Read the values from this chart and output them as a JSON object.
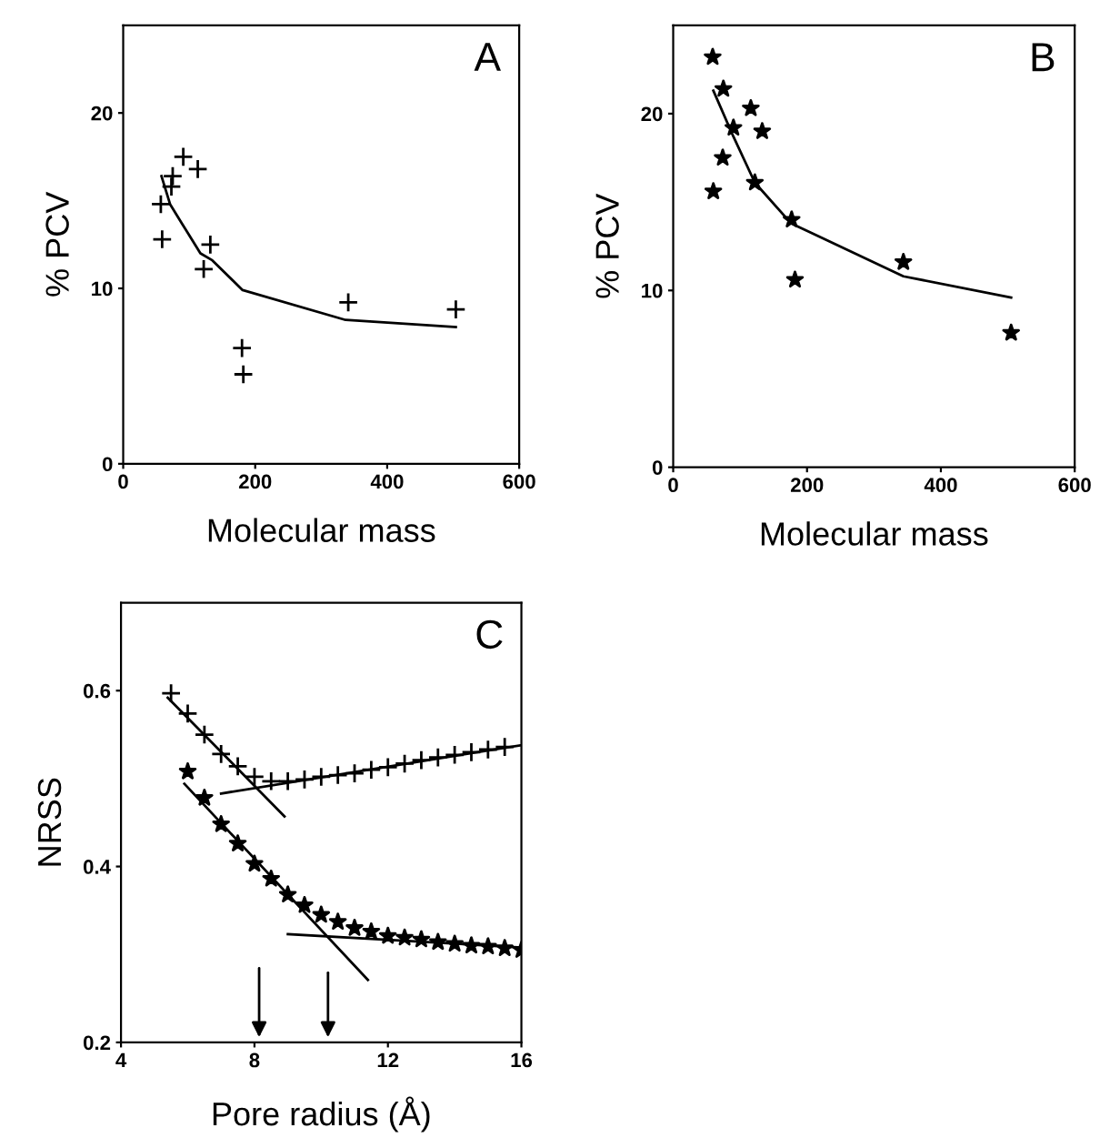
{
  "chart_data": [
    {
      "type": "scatter",
      "xlabel": "Molecular mass",
      "ylabel": "% PCV",
      "annotations": [
        "A"
      ],
      "xlim": [
        0,
        600
      ],
      "ylim": [
        0,
        25
      ],
      "xticks": [
        0,
        200,
        400,
        600
      ],
      "yticks": [
        0,
        10,
        20
      ],
      "grid": false,
      "legend": false,
      "series": [
        {
          "marker": "cross",
          "color": "#000000",
          "x": [
            57,
            59,
            75,
            73,
            91,
            113,
            132,
            122,
            180,
            182,
            341,
            504
          ],
          "values": [
            14.8,
            12.8,
            16.4,
            15.8,
            17.5,
            16.8,
            12.5,
            11.1,
            6.6,
            5.1,
            9.2,
            8.8
          ]
        },
        {
          "type": "line",
          "marker": "none",
          "line_style": "solid",
          "color": "#000000",
          "x": [
            58,
            71,
            89,
            117,
            135,
            181,
            337,
            504
          ],
          "values": [
            16.4,
            14.8,
            13.7,
            12.0,
            11.6,
            9.9,
            8.2,
            7.8
          ]
        }
      ]
    },
    {
      "type": "scatter",
      "xlabel": "Molecular mass",
      "ylabel": "% PCV",
      "annotations": [
        "B"
      ],
      "xlim": [
        0,
        600
      ],
      "ylim": [
        0,
        25
      ],
      "xticks": [
        0,
        200,
        400,
        600
      ],
      "yticks": [
        0,
        10,
        20
      ],
      "grid": false,
      "legend": false,
      "series": [
        {
          "marker": "star",
          "color": "#000000",
          "x": [
            59,
            75,
            60,
            74,
            90,
            116,
            133,
            122,
            177,
            182,
            344,
            505
          ],
          "values": [
            23.2,
            21.4,
            15.6,
            17.5,
            19.2,
            20.3,
            19.0,
            16.1,
            14.0,
            10.6,
            11.6,
            7.6
          ]
        },
        {
          "type": "line",
          "marker": "none",
          "line_style": "solid",
          "color": "#000000",
          "x": [
            60,
            90,
            122,
            176,
            344,
            505
          ],
          "values": [
            21.3,
            18.7,
            16.1,
            13.8,
            10.8,
            9.6
          ]
        }
      ]
    },
    {
      "type": "scatter",
      "xlabel": "Pore radius (Å)",
      "ylabel": "NRSS",
      "annotations": [
        "C"
      ],
      "xlim": [
        4,
        16
      ],
      "ylim": [
        0.2,
        0.7
      ],
      "xticks": [
        4,
        8,
        12,
        16
      ],
      "yticks": [
        0.2,
        0.4,
        0.6
      ],
      "grid": false,
      "legend": false,
      "series": [
        {
          "marker": "cross",
          "color": "#000000",
          "x": [
            5.5,
            6,
            6.5,
            7,
            7.5,
            8,
            8.5,
            9,
            9.5,
            10,
            10.5,
            11,
            11.5,
            12,
            12.5,
            13,
            13.5,
            14,
            14.5,
            15,
            15.5
          ],
          "values": [
            0.597,
            0.574,
            0.55,
            0.528,
            0.514,
            0.502,
            0.497,
            0.497,
            0.499,
            0.502,
            0.504,
            0.506,
            0.51,
            0.513,
            0.517,
            0.521,
            0.524,
            0.527,
            0.53,
            0.533,
            0.536
          ]
        },
        {
          "marker": "star",
          "color": "#000000",
          "x": [
            6,
            6.5,
            7,
            7.5,
            8,
            8.5,
            9,
            9.5,
            10,
            10.5,
            11,
            11.5,
            12,
            12.5,
            13,
            13.5,
            14,
            14.5,
            15,
            15.5,
            16
          ],
          "values": [
            0.508,
            0.478,
            0.448,
            0.426,
            0.403,
            0.386,
            0.368,
            0.356,
            0.345,
            0.337,
            0.33,
            0.326,
            0.321,
            0.319,
            0.317,
            0.314,
            0.312,
            0.31,
            0.309,
            0.307,
            0.305
          ]
        },
        {
          "type": "line",
          "marker": "none",
          "line_style": "solid",
          "color": "#000000",
          "x": [
            5.4,
            8.9
          ],
          "values": [
            0.592,
            0.457
          ]
        },
        {
          "type": "line",
          "marker": "none",
          "line_style": "solid",
          "color": "#000000",
          "x": [
            7,
            16
          ],
          "values": [
            0.483,
            0.538
          ]
        },
        {
          "type": "line",
          "marker": "none",
          "line_style": "solid",
          "color": "#000000",
          "x": [
            5.9,
            11.4
          ],
          "values": [
            0.494,
            0.271
          ]
        },
        {
          "type": "line",
          "marker": "none",
          "line_style": "solid",
          "color": "#000000",
          "x": [
            9,
            16
          ],
          "values": [
            0.323,
            0.308
          ]
        }
      ]
    }
  ]
}
